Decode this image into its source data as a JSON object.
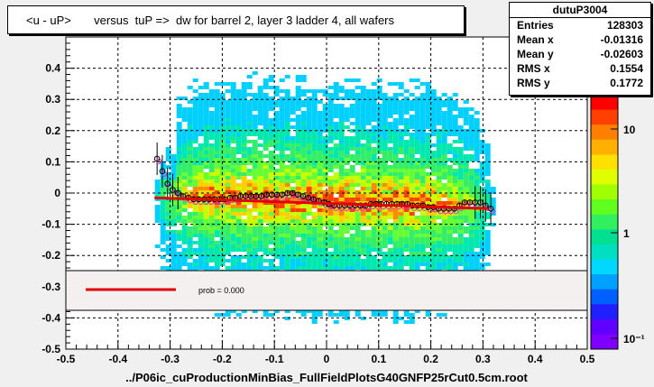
{
  "title": "<u - uP>       versus  tuP =>  dw for barrel 2, layer 3 ladder 4, all wafers",
  "xlabel": "../P06ic_cuProductionMinBias_FullFieldPlotsG40GNFP25rCut0.5cm.root",
  "stats": {
    "name": "dutuP3004",
    "rows": [
      {
        "key": "Entries",
        "value": "128303"
      },
      {
        "key": "Mean x",
        "value": "-0.01316"
      },
      {
        "key": "Mean y",
        "value": "-0.02603"
      },
      {
        "key": "RMS x",
        "value": "0.1554"
      },
      {
        "key": "RMS y",
        "value": "0.1772"
      }
    ]
  },
  "legend": {
    "label": "prob = 0.000",
    "color": "#e00000"
  },
  "colors": {
    "fit": "#e00000",
    "marker": "#000000",
    "profile2": "#cc33cc"
  },
  "chart_data": {
    "type": "heatmap",
    "xlim": [
      -0.5,
      0.5
    ],
    "ylim": [
      -0.5,
      0.5
    ],
    "x_ticks": [
      "-0.5",
      "-0.4",
      "-0.3",
      "-0.2",
      "-0.1",
      "0",
      "0.1",
      "0.2",
      "0.3",
      "0.4",
      "0.5"
    ],
    "y_ticks": [
      "-0.5",
      "-0.4",
      "-0.3",
      "-0.2",
      "-0.1",
      "0",
      "0.1",
      "0.2",
      "0.3",
      "0.4"
    ],
    "z_ticks": [
      "10",
      "1",
      "10⁻¹"
    ],
    "grid": true,
    "fit_line": {
      "x": [
        -0.33,
        0.31
      ],
      "y": [
        -0.015,
        -0.05
      ]
    },
    "profile": {
      "x": [
        -0.325,
        -0.315,
        -0.305,
        -0.295,
        -0.285,
        -0.275,
        -0.265,
        -0.255,
        -0.245,
        -0.235,
        -0.225,
        -0.215,
        -0.205,
        -0.195,
        -0.185,
        -0.175,
        -0.165,
        -0.155,
        -0.145,
        -0.135,
        -0.125,
        -0.115,
        -0.105,
        -0.095,
        -0.085,
        -0.075,
        -0.065,
        -0.055,
        -0.045,
        -0.035,
        -0.025,
        -0.015,
        -0.005,
        0.005,
        0.015,
        0.025,
        0.035,
        0.045,
        0.055,
        0.065,
        0.075,
        0.085,
        0.095,
        0.105,
        0.115,
        0.125,
        0.135,
        0.145,
        0.155,
        0.165,
        0.175,
        0.185,
        0.195,
        0.205,
        0.215,
        0.225,
        0.235,
        0.245,
        0.255,
        0.265,
        0.275,
        0.285,
        0.295,
        0.305,
        0.315
      ],
      "y": [
        0.11,
        0.07,
        0.03,
        0.01,
        0.0,
        -0.01,
        -0.015,
        -0.02,
        -0.02,
        -0.02,
        -0.02,
        -0.02,
        -0.02,
        -0.02,
        -0.015,
        -0.015,
        -0.01,
        -0.01,
        -0.01,
        -0.01,
        -0.01,
        -0.005,
        -0.005,
        -0.005,
        -0.005,
        0.0,
        0.0,
        -0.005,
        -0.01,
        -0.015,
        -0.02,
        -0.025,
        -0.03,
        -0.035,
        -0.04,
        -0.04,
        -0.04,
        -0.04,
        -0.04,
        -0.04,
        -0.04,
        -0.035,
        -0.035,
        -0.035,
        -0.035,
        -0.035,
        -0.035,
        -0.035,
        -0.035,
        -0.04,
        -0.04,
        -0.04,
        -0.045,
        -0.045,
        -0.05,
        -0.05,
        -0.05,
        -0.05,
        -0.04,
        -0.03,
        -0.03,
        -0.03,
        -0.03,
        -0.04,
        -0.05
      ]
    }
  }
}
